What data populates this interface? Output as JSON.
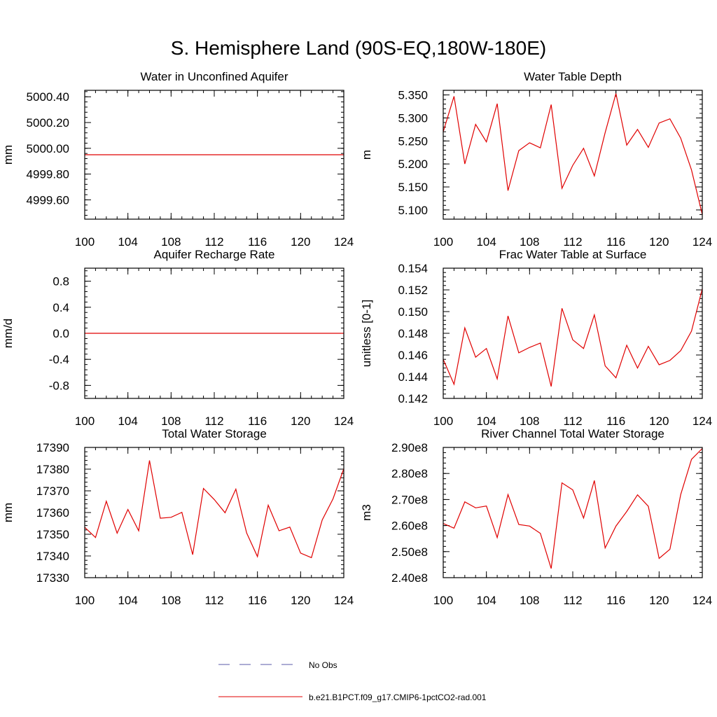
{
  "figure": {
    "title": "S. Hemisphere Land (90S-EQ,180W-180E)"
  },
  "legend": {
    "entries": [
      {
        "label": "No Obs",
        "color": "#5a5aa8",
        "style": "dashed"
      },
      {
        "label": "b.e21.B1PCT.f09_g17.CMIP6-1pctCO2-rad.001",
        "color": "#e00000",
        "style": "solid"
      }
    ]
  },
  "chart_data": [
    {
      "type": "line",
      "title": "Water in Unconfined Aquifer",
      "ylabel": "mm",
      "xlim": [
        100,
        124
      ],
      "ylim": [
        4999.45,
        5000.45
      ],
      "xticks": [
        "100",
        "104",
        "108",
        "112",
        "116",
        "120",
        "124"
      ],
      "yticks": [
        4999.6,
        4999.8,
        5000.0,
        5000.2,
        5000.4
      ],
      "ytick_labels": [
        "4999.60",
        "4999.80",
        "5000.00",
        "5000.20",
        "5000.40"
      ],
      "series": [
        {
          "color": "#e00000",
          "x": [
            100,
            101,
            102,
            103,
            104,
            105,
            106,
            107,
            108,
            109,
            110,
            111,
            112,
            113,
            114,
            115,
            116,
            117,
            118,
            119,
            120,
            121,
            122,
            123,
            124
          ],
          "values": [
            4999.95,
            4999.95,
            4999.95,
            4999.95,
            4999.95,
            4999.95,
            4999.95,
            4999.95,
            4999.95,
            4999.95,
            4999.95,
            4999.95,
            4999.95,
            4999.95,
            4999.95,
            4999.95,
            4999.95,
            4999.95,
            4999.95,
            4999.95,
            4999.95,
            4999.95,
            4999.95,
            4999.95,
            4999.95
          ]
        }
      ]
    },
    {
      "type": "line",
      "title": "Water Table Depth",
      "ylabel": "m",
      "xlim": [
        100,
        124
      ],
      "ylim": [
        5.08,
        5.36
      ],
      "xticks": [
        "100",
        "104",
        "108",
        "112",
        "116",
        "120",
        "124"
      ],
      "yticks": [
        5.1,
        5.15,
        5.2,
        5.25,
        5.3,
        5.35
      ],
      "ytick_labels": [
        "5.100",
        "5.150",
        "5.200",
        "5.250",
        "5.300",
        "5.350"
      ],
      "series": [
        {
          "color": "#e00000",
          "x": [
            100,
            101,
            102,
            103,
            104,
            105,
            106,
            107,
            108,
            109,
            110,
            111,
            112,
            113,
            114,
            115,
            116,
            117,
            118,
            119,
            120,
            121,
            122,
            123,
            124
          ],
          "values": [
            5.27,
            5.347,
            5.2,
            5.286,
            5.248,
            5.331,
            5.142,
            5.229,
            5.246,
            5.235,
            5.329,
            5.147,
            5.197,
            5.234,
            5.174,
            5.268,
            5.353,
            5.241,
            5.275,
            5.236,
            5.289,
            5.298,
            5.256,
            5.187,
            5.09
          ]
        }
      ]
    },
    {
      "type": "line",
      "title": "Aquifer Recharge Rate",
      "ylabel": "mm/d",
      "xlim": [
        100,
        124
      ],
      "ylim": [
        -1.0,
        1.0
      ],
      "xticks": [
        "100",
        "104",
        "108",
        "112",
        "116",
        "120",
        "124"
      ],
      "yticks": [
        -0.8,
        -0.4,
        0.0,
        0.4,
        0.8
      ],
      "ytick_labels": [
        "-0.8",
        "-0.4",
        "0.0",
        "0.4",
        "0.8"
      ],
      "series": [
        {
          "color": "#e00000",
          "x": [
            100,
            101,
            102,
            103,
            104,
            105,
            106,
            107,
            108,
            109,
            110,
            111,
            112,
            113,
            114,
            115,
            116,
            117,
            118,
            119,
            120,
            121,
            122,
            123,
            124
          ],
          "values": [
            0,
            0,
            0,
            0,
            0,
            0,
            0,
            0,
            0,
            0,
            0,
            0,
            0,
            0,
            0,
            0,
            0,
            0,
            0,
            0,
            0,
            0,
            0,
            0,
            0
          ]
        }
      ]
    },
    {
      "type": "line",
      "title": "Frac Water Table at Surface",
      "ylabel": "unitless [0-1]",
      "xlim": [
        100,
        124
      ],
      "ylim": [
        0.142,
        0.154
      ],
      "xticks": [
        "100",
        "104",
        "108",
        "112",
        "116",
        "120",
        "124"
      ],
      "yticks": [
        0.142,
        0.144,
        0.146,
        0.148,
        0.15,
        0.152,
        0.154
      ],
      "ytick_labels": [
        "0.142",
        "0.144",
        "0.146",
        "0.148",
        "0.150",
        "0.152",
        "0.154"
      ],
      "series": [
        {
          "color": "#e00000",
          "x": [
            100,
            101,
            102,
            103,
            104,
            105,
            106,
            107,
            108,
            109,
            110,
            111,
            112,
            113,
            114,
            115,
            116,
            117,
            118,
            119,
            120,
            121,
            122,
            123,
            124
          ],
          "values": [
            0.1456,
            0.1433,
            0.1485,
            0.1458,
            0.1466,
            0.1438,
            0.1496,
            0.1462,
            0.1467,
            0.1471,
            0.1431,
            0.1503,
            0.1474,
            0.1466,
            0.1497,
            0.145,
            0.1439,
            0.1469,
            0.1448,
            0.1468,
            0.1451,
            0.1455,
            0.1464,
            0.1482,
            0.1521
          ]
        }
      ]
    },
    {
      "type": "line",
      "title": "Total Water Storage",
      "ylabel": "mm",
      "xlim": [
        100,
        124
      ],
      "ylim": [
        17330,
        17390
      ],
      "xticks": [
        "100",
        "104",
        "108",
        "112",
        "116",
        "120",
        "124"
      ],
      "yticks": [
        17330,
        17340,
        17350,
        17360,
        17370,
        17380,
        17390
      ],
      "ytick_labels": [
        "17330",
        "17340",
        "17350",
        "17360",
        "17370",
        "17380",
        "17390"
      ],
      "series": [
        {
          "color": "#e00000",
          "x": [
            100,
            101,
            102,
            103,
            104,
            105,
            106,
            107,
            108,
            109,
            110,
            111,
            112,
            113,
            114,
            115,
            116,
            117,
            118,
            119,
            120,
            121,
            122,
            123,
            124
          ],
          "values": [
            17353.2,
            17348.5,
            17365.2,
            17350.5,
            17361.4,
            17351.6,
            17384.0,
            17357.4,
            17357.8,
            17360.1,
            17340.6,
            17371.1,
            17366.0,
            17359.9,
            17370.8,
            17350.6,
            17339.7,
            17363.4,
            17351.6,
            17353.3,
            17341.3,
            17339.2,
            17356.6,
            17366.3,
            17380.2
          ]
        }
      ]
    },
    {
      "type": "line",
      "title": "River Channel Total Water Storage",
      "ylabel": "m3",
      "xlim": [
        100,
        124
      ],
      "ylim": [
        240000000,
        290000000
      ],
      "xticks": [
        "100",
        "104",
        "108",
        "112",
        "116",
        "120",
        "124"
      ],
      "yticks": [
        240000000,
        250000000,
        260000000,
        270000000,
        280000000,
        290000000
      ],
      "ytick_labels": [
        "2.40e8",
        "2.50e8",
        "2.60e8",
        "2.70e8",
        "2.80e8",
        "2.90e8"
      ],
      "series": [
        {
          "color": "#e00000",
          "x": [
            100,
            101,
            102,
            103,
            104,
            105,
            106,
            107,
            108,
            109,
            110,
            111,
            112,
            113,
            114,
            115,
            116,
            117,
            118,
            119,
            120,
            121,
            122,
            123,
            124
          ],
          "values": [
            260800000,
            259000000,
            269100000,
            266800000,
            267500000,
            255400000,
            271900000,
            260400000,
            259800000,
            257000000,
            243500000,
            276400000,
            273700000,
            262900000,
            277300000,
            251400000,
            259800000,
            265400000,
            271800000,
            267400000,
            247400000,
            250900000,
            271900000,
            285400000,
            289600000
          ]
        }
      ]
    }
  ]
}
